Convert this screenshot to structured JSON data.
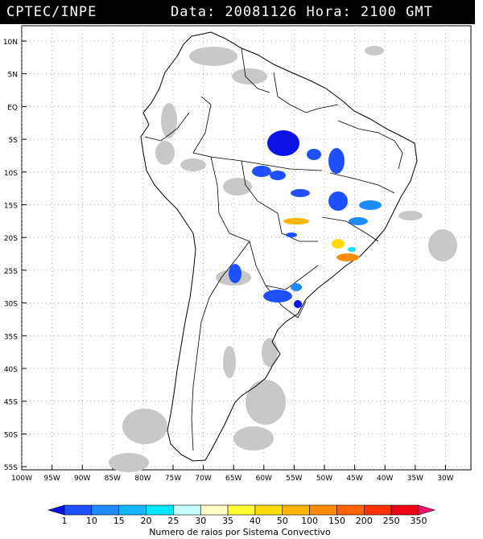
{
  "header": {
    "source": "CPTEC/INPE",
    "datetime": "Data: 20081126 Hora: 2100 GMT"
  },
  "map": {
    "lat_labels": [
      "10N",
      "5N",
      "EQ",
      "5S",
      "10S",
      "15S",
      "20S",
      "25S",
      "30S",
      "35S",
      "40S",
      "45S",
      "50S",
      "55S"
    ],
    "lon_labels": [
      "100W",
      "95W",
      "90W",
      "85W",
      "80W",
      "75W",
      "70W",
      "65W",
      "60W",
      "55W",
      "50W",
      "45W",
      "40W",
      "35W",
      "30W"
    ]
  },
  "colorbar": {
    "ticks": [
      "1",
      "10",
      "15",
      "20",
      "25",
      "30",
      "35",
      "40",
      "50",
      "100",
      "150",
      "200",
      "250",
      "350"
    ],
    "colors": [
      "#0a14e6",
      "#1e50ff",
      "#1e8cff",
      "#14b4ff",
      "#00e6ff",
      "#c8ffff",
      "#ffffc8",
      "#ffff32",
      "#ffdc00",
      "#ffb400",
      "#ff8c00",
      "#ff6400",
      "#ff3200",
      "#f00014",
      "#f0146e"
    ],
    "title": "Numero de raios por Sistema Convectivo"
  }
}
